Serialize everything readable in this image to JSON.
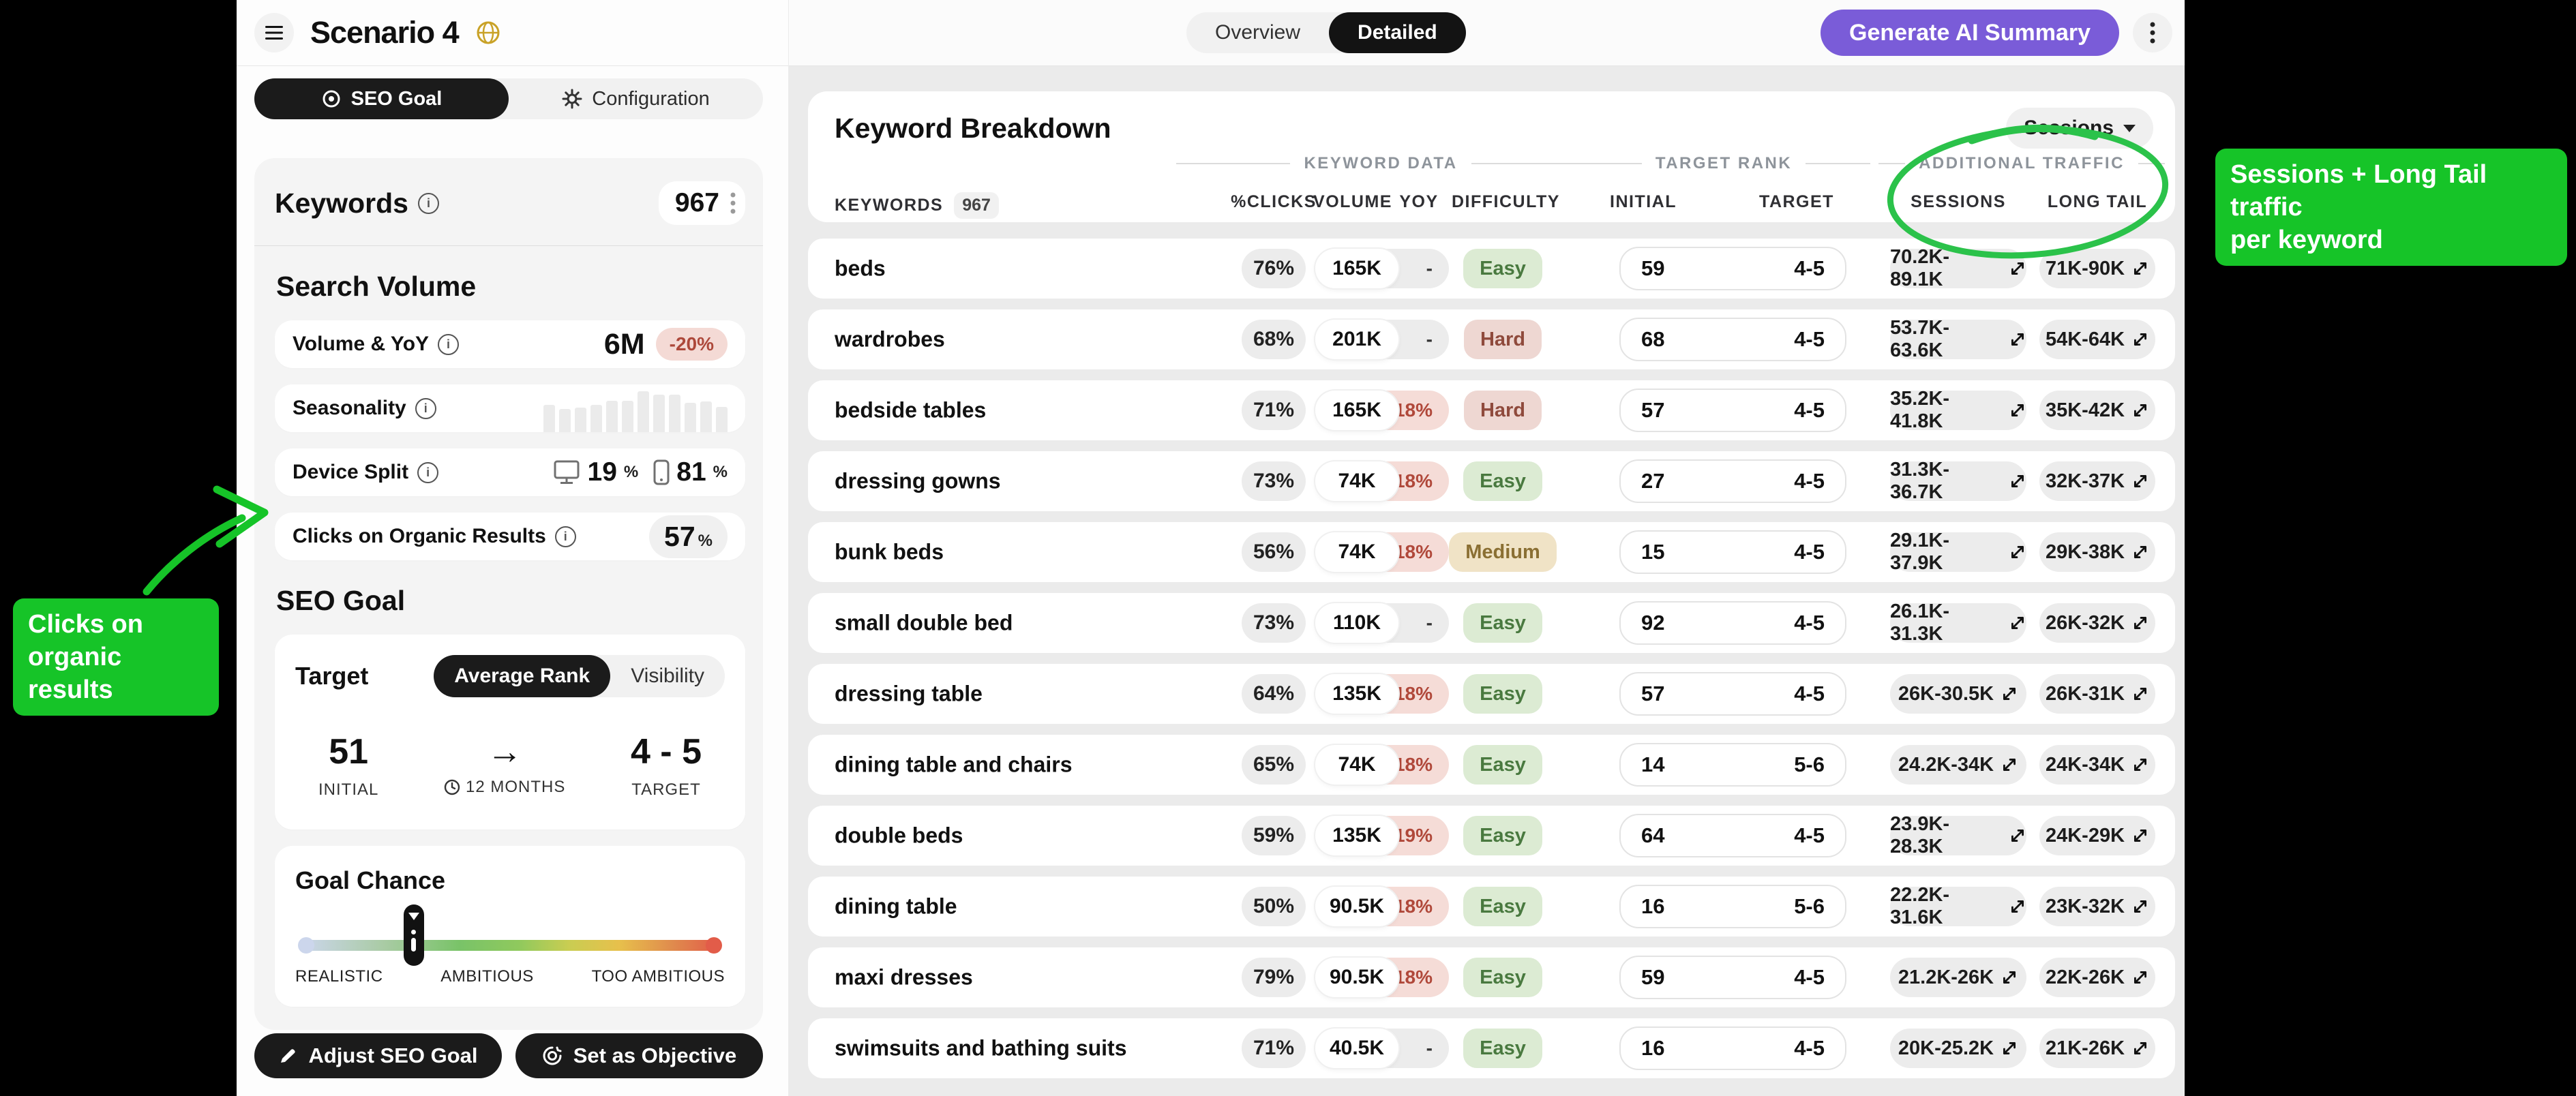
{
  "app": {
    "title": "Scenario 4"
  },
  "sidebar": {
    "tabs": [
      {
        "label": "SEO Goal"
      },
      {
        "label": "Configuration"
      }
    ],
    "keywords": {
      "label": "Keywords",
      "count": "967"
    },
    "search_volume": {
      "heading": "Search Volume",
      "volume_yoy": {
        "label": "Volume & YoY",
        "volume": "6M",
        "yoy": "-20%"
      },
      "seasonality": {
        "label": "Seasonality",
        "bars": [
          40,
          34,
          36,
          40,
          46,
          46,
          60,
          55,
          55,
          43,
          45,
          37
        ]
      },
      "device_split": {
        "label": "Device Split",
        "desktop": "19",
        "mobile": "81",
        "percent_sign": "%"
      },
      "clicks_organic": {
        "label": "Clicks on Organic Results",
        "value": "57",
        "percent_sign": "%"
      }
    },
    "seo_goal": {
      "heading": "SEO Goal",
      "target_label": "Target",
      "toggle": [
        {
          "label": "Average Rank"
        },
        {
          "label": "Visibility"
        }
      ],
      "initial": {
        "value": "51",
        "label": "INITIAL"
      },
      "period": {
        "label": "12 MONTHS"
      },
      "target": {
        "value": "4 - 5",
        "label": "TARGET"
      },
      "goal_chance": {
        "heading": "Goal Chance",
        "marker_left_pct": 27,
        "labels": [
          "REALISTIC",
          "AMBITIOUS",
          "TOO AMBITIOUS"
        ]
      }
    },
    "footer_buttons": [
      {
        "label": "Adjust SEO Goal"
      },
      {
        "label": "Set as Objective"
      }
    ]
  },
  "topbar": {
    "view_toggle": [
      {
        "label": "Overview"
      },
      {
        "label": "Detailed"
      }
    ],
    "ai_button": "Generate AI Summary"
  },
  "table": {
    "title": "Keyword Breakdown",
    "filter": "Sessions",
    "group_headers": [
      "KEYWORD DATA",
      "TARGET RANK",
      "ADDITIONAL TRAFFIC"
    ],
    "columns": {
      "keywords": "KEYWORDS",
      "count": "967",
      "clicks": "%CLICKS",
      "volume": "VOLUME",
      "yoy": "YOY",
      "difficulty": "DIFFICULTY",
      "initial": "INITIAL",
      "target": "TARGET",
      "sessions": "SESSIONS",
      "long_tail": "LONG TAIL"
    },
    "rows": [
      {
        "keyword": "beds",
        "clicks": "76%",
        "volume": "165K",
        "yoy": "-",
        "difficulty": "Easy",
        "initial": "59",
        "target": "4-5",
        "sessions": "70.2K-89.1K",
        "long_tail": "71K-90K"
      },
      {
        "keyword": "wardrobes",
        "clicks": "68%",
        "volume": "201K",
        "yoy": "-",
        "difficulty": "Hard",
        "initial": "68",
        "target": "4-5",
        "sessions": "53.7K-63.6K",
        "long_tail": "54K-64K"
      },
      {
        "keyword": "bedside tables",
        "clicks": "71%",
        "volume": "165K",
        "yoy": "-18%",
        "difficulty": "Hard",
        "initial": "57",
        "target": "4-5",
        "sessions": "35.2K-41.8K",
        "long_tail": "35K-42K"
      },
      {
        "keyword": "dressing gowns",
        "clicks": "73%",
        "volume": "74K",
        "yoy": "-18%",
        "difficulty": "Easy",
        "initial": "27",
        "target": "4-5",
        "sessions": "31.3K-36.7K",
        "long_tail": "32K-37K"
      },
      {
        "keyword": "bunk beds",
        "clicks": "56%",
        "volume": "74K",
        "yoy": "-18%",
        "difficulty": "Medium",
        "initial": "15",
        "target": "4-5",
        "sessions": "29.1K-37.9K",
        "long_tail": "29K-38K"
      },
      {
        "keyword": "small double bed",
        "clicks": "73%",
        "volume": "110K",
        "yoy": "-",
        "difficulty": "Easy",
        "initial": "92",
        "target": "4-5",
        "sessions": "26.1K-31.3K",
        "long_tail": "26K-32K"
      },
      {
        "keyword": "dressing table",
        "clicks": "64%",
        "volume": "135K",
        "yoy": "-18%",
        "difficulty": "Easy",
        "initial": "57",
        "target": "4-5",
        "sessions": "26K-30.5K",
        "long_tail": "26K-31K"
      },
      {
        "keyword": "dining table and chairs",
        "clicks": "65%",
        "volume": "74K",
        "yoy": "-18%",
        "difficulty": "Easy",
        "initial": "14",
        "target": "5-6",
        "sessions": "24.2K-34K",
        "long_tail": "24K-34K"
      },
      {
        "keyword": "double beds",
        "clicks": "59%",
        "volume": "135K",
        "yoy": "-19%",
        "difficulty": "Easy",
        "initial": "64",
        "target": "4-5",
        "sessions": "23.9K-28.3K",
        "long_tail": "24K-29K"
      },
      {
        "keyword": "dining table",
        "clicks": "50%",
        "volume": "90.5K",
        "yoy": "-18%",
        "difficulty": "Easy",
        "initial": "16",
        "target": "5-6",
        "sessions": "22.2K-31.6K",
        "long_tail": "23K-32K"
      },
      {
        "keyword": "maxi dresses",
        "clicks": "79%",
        "volume": "90.5K",
        "yoy": "-18%",
        "difficulty": "Easy",
        "initial": "59",
        "target": "4-5",
        "sessions": "21.2K-26K",
        "long_tail": "22K-26K"
      },
      {
        "keyword": "swimsuits and bathing suits",
        "clicks": "71%",
        "volume": "40.5K",
        "yoy": "-",
        "difficulty": "Easy",
        "initial": "16",
        "target": "4-5",
        "sessions": "20K-25.2K",
        "long_tail": "21K-26K"
      }
    ]
  },
  "annotations": {
    "left_line1": "Clicks on",
    "left_line2": "organic results",
    "right_line1": "Sessions + Long Tail traffic",
    "right_line2": "per keyword",
    "accent": "#16c428"
  }
}
